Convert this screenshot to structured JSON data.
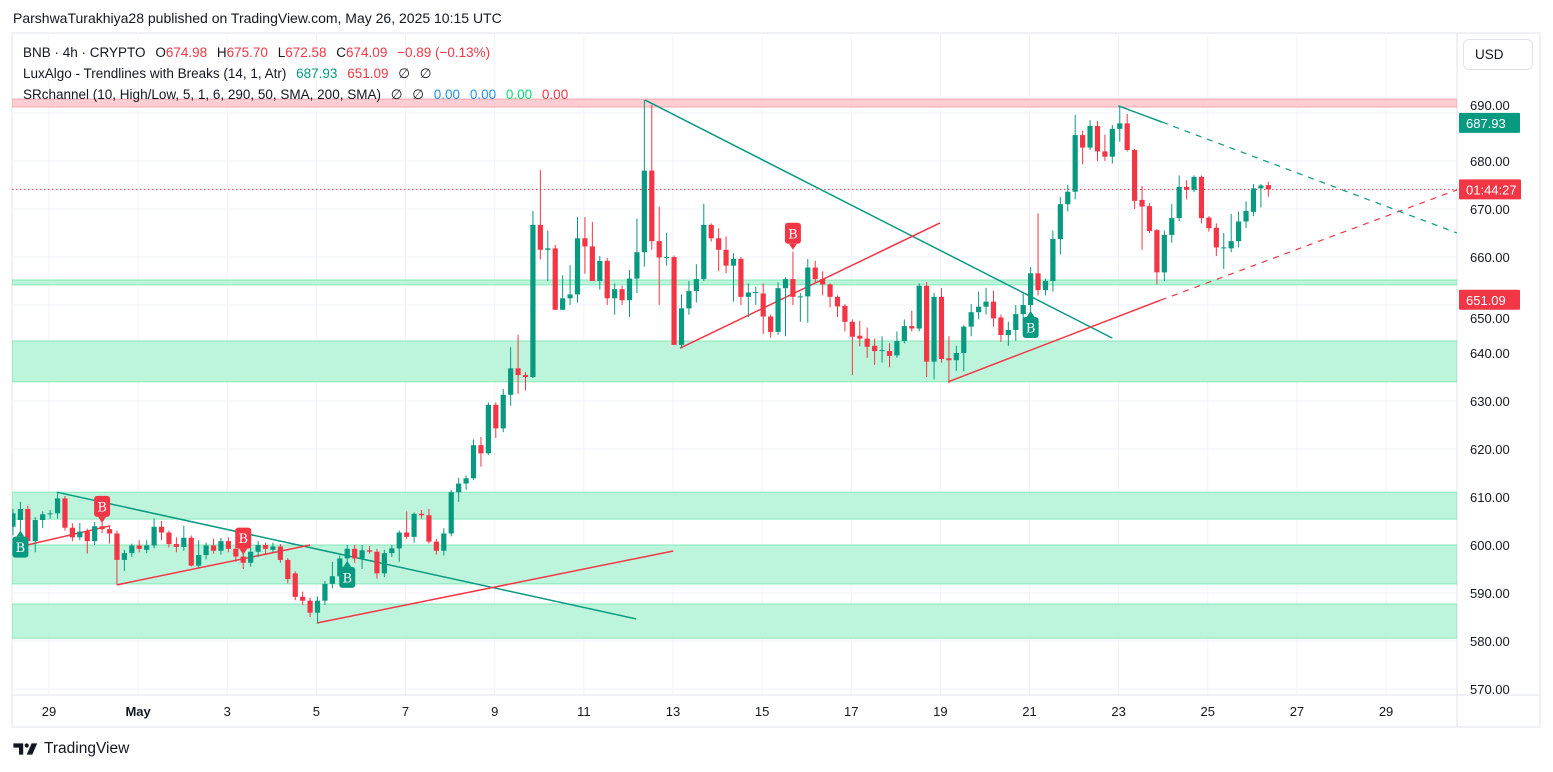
{
  "header": {
    "publish_line": "ParshwaTurakhiya28 published on TradingView.com, May 26, 2025 10:15 UTC"
  },
  "legend": {
    "symbol": "BNB · 4h · CRYPTO",
    "open_label": "O",
    "open": "674.98",
    "high_label": "H",
    "high": "675.70",
    "low_label": "L",
    "low": "672.58",
    "close_label": "C",
    "close": "674.09",
    "change": "−0.89 (−0.13%)",
    "ind1_name": "LuxAlgo - Trendlines with Breaks (14, 1, Atr)",
    "ind1_v1": "687.93",
    "ind1_v2": "651.09",
    "ind1_v3": "∅",
    "ind1_v4": "∅",
    "ind2_name": "SRchannel (10, High/Low, 5, 1, 6, 290, 50, SMA, 200, SMA)",
    "ind2_v1": "∅",
    "ind2_v2": "∅",
    "ind2_v3": "0.00",
    "ind2_v4": "0.00",
    "ind2_v5": "0.00",
    "ind2_v6": "0.00"
  },
  "currency_button": "USD",
  "footer": {
    "brand": "TradingView"
  },
  "colors": {
    "up": "#089981",
    "down": "#f23645",
    "zone_fill": "#bdf5dc",
    "zone_border": "#86e8b8",
    "resistance_fill": "#ffcdd2",
    "grid": "#f0f3fa"
  },
  "chart_data": {
    "type": "candlestick",
    "symbol": "BNB",
    "interval": "4h",
    "ylim": [
      568.75,
      706.25
    ],
    "x_index_range": [
      -0.13,
      194.4
    ],
    "y_ticks": [
      690,
      680,
      670,
      660,
      650,
      640,
      630,
      620,
      610,
      600,
      590,
      580,
      570
    ],
    "y_tick_labels": [
      "690.00",
      "680.00",
      "670.00",
      "660.00",
      "650.00",
      "640.00",
      "630.00",
      "620.00",
      "610.00",
      "600.00",
      "590.00",
      "580.00",
      "570.00"
    ],
    "x_ticks": [
      {
        "index": 4.85,
        "label": "29"
      },
      {
        "index": 16.85,
        "label": "May",
        "bold": true
      },
      {
        "index": 28.85,
        "label": "3"
      },
      {
        "index": 40.85,
        "label": "5"
      },
      {
        "index": 52.85,
        "label": "7"
      },
      {
        "index": 64.85,
        "label": "9"
      },
      {
        "index": 76.85,
        "label": "11"
      },
      {
        "index": 88.85,
        "label": "13"
      },
      {
        "index": 100.85,
        "label": "15"
      },
      {
        "index": 112.85,
        "label": "17"
      },
      {
        "index": 124.85,
        "label": "19"
      },
      {
        "index": 136.85,
        "label": "21"
      },
      {
        "index": 148.85,
        "label": "23"
      },
      {
        "index": 160.85,
        "label": "25"
      },
      {
        "index": 172.85,
        "label": "27"
      },
      {
        "index": 184.85,
        "label": "29"
      }
    ],
    "ohlc": [
      [
        603.8,
        607.5,
        602.0,
        606.6
      ],
      [
        605.2,
        609.0,
        600.5,
        607.5
      ],
      [
        607.5,
        608.2,
        600.0,
        600.8
      ],
      [
        600.8,
        605.8,
        598.5,
        605.2
      ],
      [
        605.2,
        607.0,
        603.5,
        606.4
      ],
      [
        606.4,
        607.3,
        605.5,
        606.6
      ],
      [
        606.6,
        610.8,
        605.5,
        609.7
      ],
      [
        609.7,
        610.2,
        603.0,
        603.6
      ],
      [
        603.6,
        604.5,
        600.8,
        601.6
      ],
      [
        601.6,
        604.6,
        601.0,
        602.8
      ],
      [
        602.8,
        603.4,
        598.2,
        600.8
      ],
      [
        600.8,
        604.8,
        600.0,
        603.9
      ],
      [
        603.9,
        604.8,
        602.5,
        603.3
      ],
      [
        603.3,
        604.0,
        600.3,
        602.4
      ],
      [
        602.4,
        603.0,
        591.7,
        596.9
      ],
      [
        596.9,
        599.0,
        594.6,
        598.3
      ],
      [
        598.3,
        600.3,
        597.5,
        599.9
      ],
      [
        599.9,
        601.0,
        598.5,
        599.2
      ],
      [
        599.0,
        601.0,
        598.3,
        599.9
      ],
      [
        599.9,
        605.5,
        599.3,
        603.8
      ],
      [
        603.8,
        605.0,
        601.0,
        602.6
      ],
      [
        602.6,
        603.0,
        599.5,
        600.2
      ],
      [
        600.2,
        601.6,
        598.5,
        599.6
      ],
      [
        599.6,
        604.0,
        598.8,
        601.5
      ],
      [
        601.5,
        602.0,
        595.5,
        595.7
      ],
      [
        595.7,
        601.0,
        595.3,
        597.9
      ],
      [
        597.9,
        600.5,
        597.0,
        599.9
      ],
      [
        599.9,
        601.3,
        598.2,
        598.8
      ],
      [
        598.8,
        601.5,
        598.0,
        600.8
      ],
      [
        600.8,
        601.6,
        598.5,
        599.2
      ],
      [
        599.2,
        599.8,
        596.5,
        597.6
      ],
      [
        597.6,
        598.5,
        595.0,
        596.3
      ],
      [
        596.3,
        599.5,
        595.5,
        598.6
      ],
      [
        598.6,
        600.8,
        597.5,
        600.0
      ],
      [
        600.0,
        600.5,
        598.0,
        599.2
      ],
      [
        599.0,
        600.5,
        598.5,
        599.7
      ],
      [
        599.7,
        600.2,
        596.3,
        596.9
      ],
      [
        596.9,
        597.3,
        592.0,
        592.9
      ],
      [
        594.1,
        594.5,
        588.5,
        589.2
      ],
      [
        589.2,
        590.3,
        587.5,
        588.4
      ],
      [
        588.4,
        589.0,
        585.0,
        585.9
      ],
      [
        585.9,
        589.3,
        583.7,
        588.4
      ],
      [
        588.4,
        592.5,
        587.5,
        591.9
      ],
      [
        591.9,
        596.5,
        591.0,
        593.5
      ],
      [
        593.5,
        597.8,
        593.0,
        597.2
      ],
      [
        597.2,
        600.0,
        596.0,
        599.2
      ],
      [
        599.2,
        600.0,
        596.3,
        597.2
      ],
      [
        597.2,
        600.0,
        595.0,
        598.9
      ],
      [
        598.9,
        599.8,
        598.2,
        598.6
      ],
      [
        598.6,
        599.2,
        593.0,
        594.1
      ],
      [
        594.1,
        599.0,
        593.3,
        598.3
      ],
      [
        598.3,
        600.0,
        597.5,
        599.3
      ],
      [
        599.3,
        603.0,
        596.5,
        602.6
      ],
      [
        602.6,
        607.0,
        601.3,
        601.7
      ],
      [
        601.7,
        606.8,
        600.5,
        606.5
      ],
      [
        606.5,
        607.3,
        605.5,
        606.2
      ],
      [
        606.2,
        607.5,
        600.3,
        600.7
      ],
      [
        600.7,
        601.3,
        598.0,
        598.8
      ],
      [
        598.8,
        603.5,
        597.8,
        602.4
      ],
      [
        602.4,
        611.5,
        601.8,
        611.0
      ],
      [
        611.0,
        614.0,
        609.0,
        612.8
      ],
      [
        612.8,
        614.5,
        611.5,
        613.9
      ],
      [
        613.9,
        622.0,
        613.5,
        620.8
      ],
      [
        620.8,
        622.5,
        616.3,
        619.1
      ],
      [
        619.1,
        629.7,
        618.8,
        629.2
      ],
      [
        629.2,
        629.7,
        622.3,
        624.3
      ],
      [
        624.3,
        632.5,
        623.5,
        631.3
      ],
      [
        631.3,
        641.2,
        629.0,
        636.8
      ],
      [
        636.8,
        643.8,
        631.5,
        635.4
      ],
      [
        635.4,
        636.0,
        632.2,
        635.0
      ],
      [
        635.0,
        669.6,
        634.8,
        666.7
      ],
      [
        666.7,
        678.1,
        659.5,
        661.5
      ],
      [
        661.5,
        665.5,
        655.0,
        661.8
      ],
      [
        661.8,
        662.5,
        649.0,
        649.0
      ],
      [
        649.0,
        656.2,
        649.0,
        651.4
      ],
      [
        651.4,
        658.3,
        650.0,
        652.2
      ],
      [
        652.2,
        668.3,
        650.5,
        663.9
      ],
      [
        663.9,
        668.3,
        656.5,
        662.2
      ],
      [
        662.2,
        667.3,
        655.0,
        655.0
      ],
      [
        655.0,
        660.2,
        653.2,
        659.2
      ],
      [
        659.2,
        659.8,
        650.0,
        651.4
      ],
      [
        651.4,
        654.5,
        648.0,
        653.3
      ],
      [
        653.3,
        654.0,
        650.0,
        651.0
      ],
      [
        651.0,
        657.3,
        647.5,
        655.5
      ],
      [
        655.5,
        668.0,
        652.5,
        661.0
      ],
      [
        661.0,
        692.7,
        658.0,
        678.0
      ],
      [
        678.0,
        691.7,
        661.5,
        663.3
      ],
      [
        663.3,
        670.5,
        650.0,
        659.9
      ],
      [
        659.9,
        665.0,
        658.2,
        660.0
      ],
      [
        660.0,
        660.3,
        641.7,
        641.7
      ],
      [
        641.7,
        652.2,
        641.0,
        649.3
      ],
      [
        649.3,
        655.0,
        648.0,
        652.9
      ],
      [
        652.9,
        658.5,
        650.5,
        655.4
      ],
      [
        655.4,
        671.1,
        655.0,
        666.7
      ],
      [
        666.7,
        667.0,
        663.2,
        663.9
      ],
      [
        663.9,
        666.0,
        657.0,
        661.5
      ],
      [
        661.5,
        664.3,
        656.6,
        658.2
      ],
      [
        658.2,
        660.8,
        650.7,
        659.6
      ],
      [
        659.6,
        660.0,
        650.0,
        651.7
      ],
      [
        651.7,
        654.5,
        647.5,
        652.6
      ],
      [
        652.6,
        653.8,
        650.0,
        652.7
      ],
      [
        652.4,
        654.5,
        644.0,
        647.6
      ],
      [
        647.6,
        648.0,
        643.2,
        644.4
      ],
      [
        644.4,
        654.7,
        643.8,
        653.5
      ],
      [
        653.5,
        655.8,
        643.5,
        655.4
      ],
      [
        655.4,
        661.1,
        650.0,
        651.7
      ],
      [
        651.7,
        652.5,
        646.5,
        651.8
      ],
      [
        651.8,
        659.6,
        646.3,
        657.8
      ],
      [
        657.8,
        659.2,
        654.5,
        655.4
      ],
      [
        655.4,
        657.0,
        652.0,
        654.3
      ],
      [
        654.3,
        654.5,
        649.5,
        651.7
      ],
      [
        651.7,
        652.0,
        647.5,
        649.7
      ],
      [
        649.8,
        650.2,
        644.5,
        646.5
      ],
      [
        646.5,
        647.0,
        635.4,
        643.4
      ],
      [
        643.6,
        646.7,
        641.4,
        643.0
      ],
      [
        643.0,
        645.3,
        639.0,
        641.3
      ],
      [
        641.5,
        643.0,
        637.5,
        640.4
      ],
      [
        640.4,
        643.5,
        638.0,
        640.6
      ],
      [
        640.4,
        642.0,
        637.0,
        639.4
      ],
      [
        639.5,
        644.5,
        639.0,
        642.5
      ],
      [
        642.5,
        647.0,
        642.0,
        645.6
      ],
      [
        645.6,
        648.8,
        644.5,
        645.1
      ],
      [
        645.1,
        654.5,
        644.5,
        654.0
      ],
      [
        654.0,
        654.8,
        635.0,
        638.2
      ],
      [
        638.2,
        652.5,
        634.5,
        651.7
      ],
      [
        651.7,
        653.5,
        638.0,
        638.75
      ],
      [
        638.9,
        643.5,
        633.7,
        638.5
      ],
      [
        638.5,
        641.5,
        636.3,
        640.0
      ],
      [
        640.0,
        645.8,
        636.2,
        645.5
      ],
      [
        645.5,
        650.2,
        643.5,
        648.5
      ],
      [
        648.5,
        652.8,
        647.0,
        649.65
      ],
      [
        649.65,
        653.6,
        648.0,
        650.7
      ],
      [
        650.7,
        653.0,
        645.5,
        647.2
      ],
      [
        647.4,
        648.0,
        642.3,
        643.75
      ],
      [
        643.75,
        646.5,
        641.5,
        644.8
      ],
      [
        644.8,
        650.0,
        642.5,
        648.1
      ],
      [
        648.1,
        652.3,
        646.5,
        650.0
      ],
      [
        650.0,
        657.9,
        648.0,
        656.6
      ],
      [
        656.6,
        669.1,
        652.0,
        653.1
      ],
      [
        653.1,
        655.5,
        652.0,
        655.0
      ],
      [
        655.0,
        665.5,
        652.8,
        663.75
      ],
      [
        663.75,
        672.5,
        660.5,
        671.0
      ],
      [
        671.0,
        675.0,
        669.5,
        673.6
      ],
      [
        673.6,
        689.6,
        672.0,
        685.4
      ],
      [
        685.4,
        686.3,
        679.3,
        682.8
      ],
      [
        682.8,
        688.5,
        682.3,
        687.3
      ],
      [
        687.3,
        688.3,
        680.0,
        682.0
      ],
      [
        682.0,
        685.5,
        680.0,
        680.9
      ],
      [
        680.9,
        687.5,
        679.5,
        686.7
      ],
      [
        686.7,
        691.3,
        684.0,
        687.85
      ],
      [
        687.85,
        689.8,
        682.0,
        682.3
      ],
      [
        682.3,
        682.5,
        670.0,
        671.7
      ],
      [
        671.9,
        674.8,
        661.5,
        670.5
      ],
      [
        670.6,
        671.2,
        665.0,
        665.4
      ],
      [
        665.6,
        665.8,
        654.3,
        656.8
      ],
      [
        656.8,
        665.5,
        655.0,
        664.6
      ],
      [
        664.6,
        671.0,
        663.0,
        668.1
      ],
      [
        668.1,
        677.0,
        667.5,
        674.6
      ],
      [
        674.6,
        676.0,
        672.0,
        674.0
      ],
      [
        674.0,
        677.0,
        673.5,
        676.7
      ],
      [
        676.7,
        677.0,
        667.0,
        668.1
      ],
      [
        668.2,
        668.5,
        665.3,
        666.0
      ],
      [
        666.1,
        667.0,
        660.2,
        662.0
      ],
      [
        662.0,
        665.0,
        657.5,
        662.0
      ],
      [
        661.8,
        669.0,
        661.0,
        663.3
      ],
      [
        663.3,
        669.5,
        662.0,
        667.4
      ],
      [
        667.4,
        671.6,
        666.0,
        669.6
      ],
      [
        669.4,
        675.2,
        668.5,
        674.3
      ],
      [
        674.3,
        675.2,
        670.3,
        674.9
      ],
      [
        674.98,
        675.7,
        672.58,
        674.09
      ]
    ],
    "support_zones": [
      [
        654.2,
        655.2
      ],
      [
        634.0,
        642.5
      ],
      [
        605.4,
        611.0
      ],
      [
        591.9,
        600.0
      ],
      [
        580.6,
        587.7
      ]
    ],
    "resistance_zone": [
      691.25,
      692.9
    ],
    "trendlines": [
      {
        "color": "teal",
        "from": [
          5.9,
          611.0
        ],
        "to": [
          83.9,
          584.6
        ]
      },
      {
        "color": "red",
        "from": [
          1.9,
          600.0
        ],
        "to": [
          13.1,
          604.0
        ]
      },
      {
        "color": "red",
        "from": [
          14.0,
          591.7
        ],
        "to": [
          40.0,
          600.0
        ]
      },
      {
        "color": "red",
        "from": [
          40.9,
          583.75
        ],
        "to": [
          88.9,
          598.75
        ]
      },
      {
        "color": "teal",
        "from": [
          85.1,
          692.7
        ],
        "to": [
          148.0,
          643.1
        ]
      },
      {
        "color": "red",
        "from": [
          89.8,
          641.0
        ],
        "to": [
          124.8,
          667.1
        ]
      },
      {
        "color": "red",
        "from": [
          125.9,
          634.0
        ],
        "to": [
          154.5,
          651.0
        ],
        "extend_dashed_to": [
          194.4,
          674.0
        ]
      },
      {
        "color": "teal",
        "from": [
          148.8,
          691.5
        ],
        "to": [
          154.7,
          688.1
        ],
        "extend_dashed_to": [
          194.4,
          665.0
        ]
      }
    ],
    "break_signals": [
      {
        "index": 12,
        "price": 604.6,
        "side": "above",
        "color": "red",
        "label": "B"
      },
      {
        "index": 31,
        "price": 598.0,
        "side": "above",
        "color": "red",
        "label": "B"
      },
      {
        "index": 105,
        "price": 661.5,
        "side": "above",
        "color": "red",
        "label": "B"
      },
      {
        "index": 1,
        "price": 603.0,
        "side": "below",
        "color": "teal",
        "label": "B"
      },
      {
        "index": 45,
        "price": 596.7,
        "side": "below",
        "color": "teal",
        "label": "B"
      },
      {
        "index": 137,
        "price": 648.75,
        "side": "below",
        "color": "teal",
        "label": "B"
      }
    ],
    "last_price": 674.09,
    "price_tags": [
      {
        "price": 687.93,
        "text": "687.93",
        "color": "#089981"
      },
      {
        "price": 674.09,
        "text": "01:44:27",
        "color": "#f23645"
      },
      {
        "price": 651.09,
        "text": "651.09",
        "color": "#f23645"
      }
    ]
  }
}
